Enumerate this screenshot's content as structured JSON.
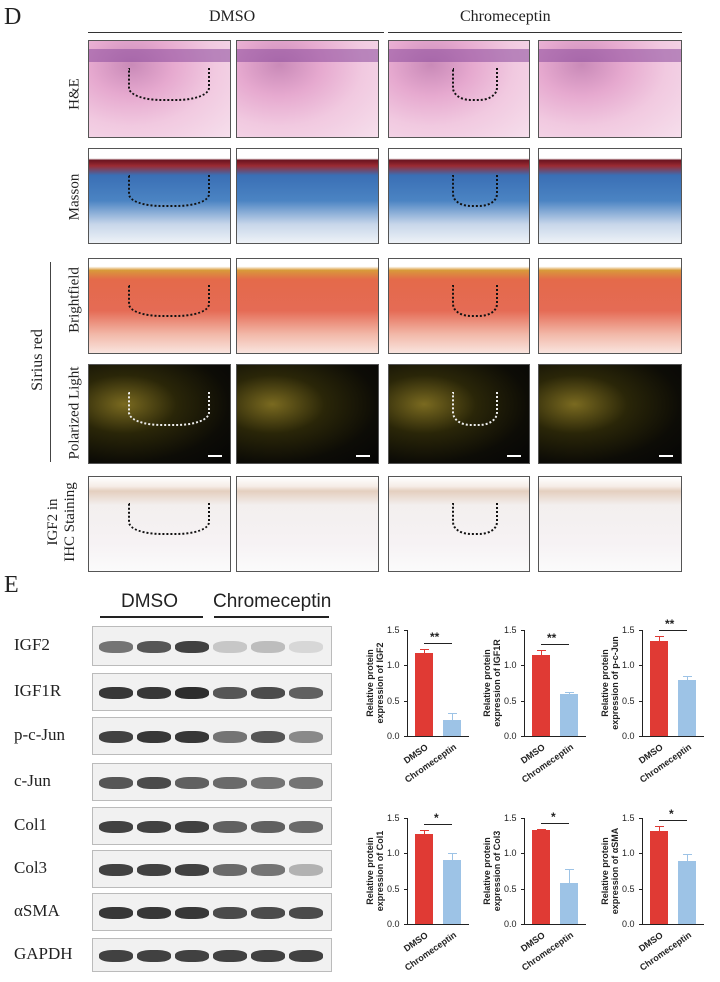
{
  "panel_d": {
    "letter": "D",
    "groups": [
      "DMSO",
      "Chromeceptin"
    ],
    "rows": [
      "H&E",
      "Masson",
      "Brightfield",
      "Polarized Light",
      "IGF2 in\nIHC Staining"
    ],
    "sirius_label": "Sirius red"
  },
  "panel_e": {
    "letter": "E",
    "groups": [
      "DMSO",
      "Chromeceptin"
    ],
    "blots": [
      "IGF2",
      "IGF1R",
      "p-c-Jun",
      "c-Jun",
      "Col1",
      "Col3",
      "αSMA",
      "GAPDH"
    ],
    "blot_intensity": [
      [
        0.6,
        0.75,
        0.85,
        0.2,
        0.25,
        0.12
      ],
      [
        0.9,
        0.9,
        0.95,
        0.75,
        0.8,
        0.7
      ],
      [
        0.85,
        0.9,
        0.9,
        0.6,
        0.75,
        0.5
      ],
      [
        0.75,
        0.8,
        0.7,
        0.65,
        0.6,
        0.6
      ],
      [
        0.85,
        0.85,
        0.85,
        0.7,
        0.7,
        0.65
      ],
      [
        0.85,
        0.85,
        0.85,
        0.65,
        0.6,
        0.3
      ],
      [
        0.9,
        0.9,
        0.9,
        0.8,
        0.8,
        0.8
      ],
      [
        0.85,
        0.85,
        0.85,
        0.85,
        0.85,
        0.85
      ]
    ]
  },
  "colors": {
    "dmso": "#e03a34",
    "chromeceptin": "#9dc3e6"
  },
  "chart_data": [
    {
      "type": "bar",
      "categories": [
        "DMSO",
        "Chromeceptin"
      ],
      "values": [
        1.17,
        0.23
      ],
      "errors": [
        0.06,
        0.09
      ],
      "ylabel": "Relative protein\nexpression of IGF2",
      "ylim": [
        0,
        1.5
      ],
      "yticks": [
        "0.0",
        "0.5",
        "1.0",
        "1.5"
      ],
      "sig": "**"
    },
    {
      "type": "bar",
      "categories": [
        "DMSO",
        "Chromeceptin"
      ],
      "values": [
        1.15,
        0.59
      ],
      "errors": [
        0.06,
        0.03
      ],
      "ylabel": "Relative protein\nexpression of IGF1R",
      "ylim": [
        0,
        1.5
      ],
      "yticks": [
        "0.0",
        "0.5",
        "1.0",
        "1.5"
      ],
      "sig": "**"
    },
    {
      "type": "bar",
      "categories": [
        "DMSO",
        "Chromeceptin"
      ],
      "values": [
        1.35,
        0.79
      ],
      "errors": [
        0.06,
        0.06
      ],
      "ylabel": "Relative protein\nexpression of p-c-Jun",
      "ylim": [
        0,
        1.5
      ],
      "yticks": [
        "0.0",
        "0.5",
        "1.0",
        "1.5"
      ],
      "sig": "**"
    },
    {
      "type": "bar",
      "categories": [
        "DMSO",
        "Chromeceptin"
      ],
      "values": [
        1.28,
        0.91
      ],
      "errors": [
        0.05,
        0.1
      ],
      "ylabel": "Relative protein\nexpression of Col1",
      "ylim": [
        0,
        1.5
      ],
      "yticks": [
        "0.0",
        "0.5",
        "1.0",
        "1.5"
      ],
      "sig": "*"
    },
    {
      "type": "bar",
      "categories": [
        "DMSO",
        "Chromeceptin"
      ],
      "values": [
        1.33,
        0.58
      ],
      "errors": [
        0.02,
        0.2
      ],
      "ylabel": "Relative protein\nexpression of Col3",
      "ylim": [
        0,
        1.5
      ],
      "yticks": [
        "0.0",
        "0.5",
        "1.0",
        "1.5"
      ],
      "sig": "*"
    },
    {
      "type": "bar",
      "categories": [
        "DMSO",
        "Chromeceptin"
      ],
      "values": [
        1.32,
        0.89
      ],
      "errors": [
        0.07,
        0.1
      ],
      "ylabel": "Relative protein\nexpression of αSMA",
      "ylim": [
        0,
        1.5
      ],
      "yticks": [
        "0.0",
        "0.5",
        "1.0",
        "1.5"
      ],
      "sig": "*"
    }
  ]
}
